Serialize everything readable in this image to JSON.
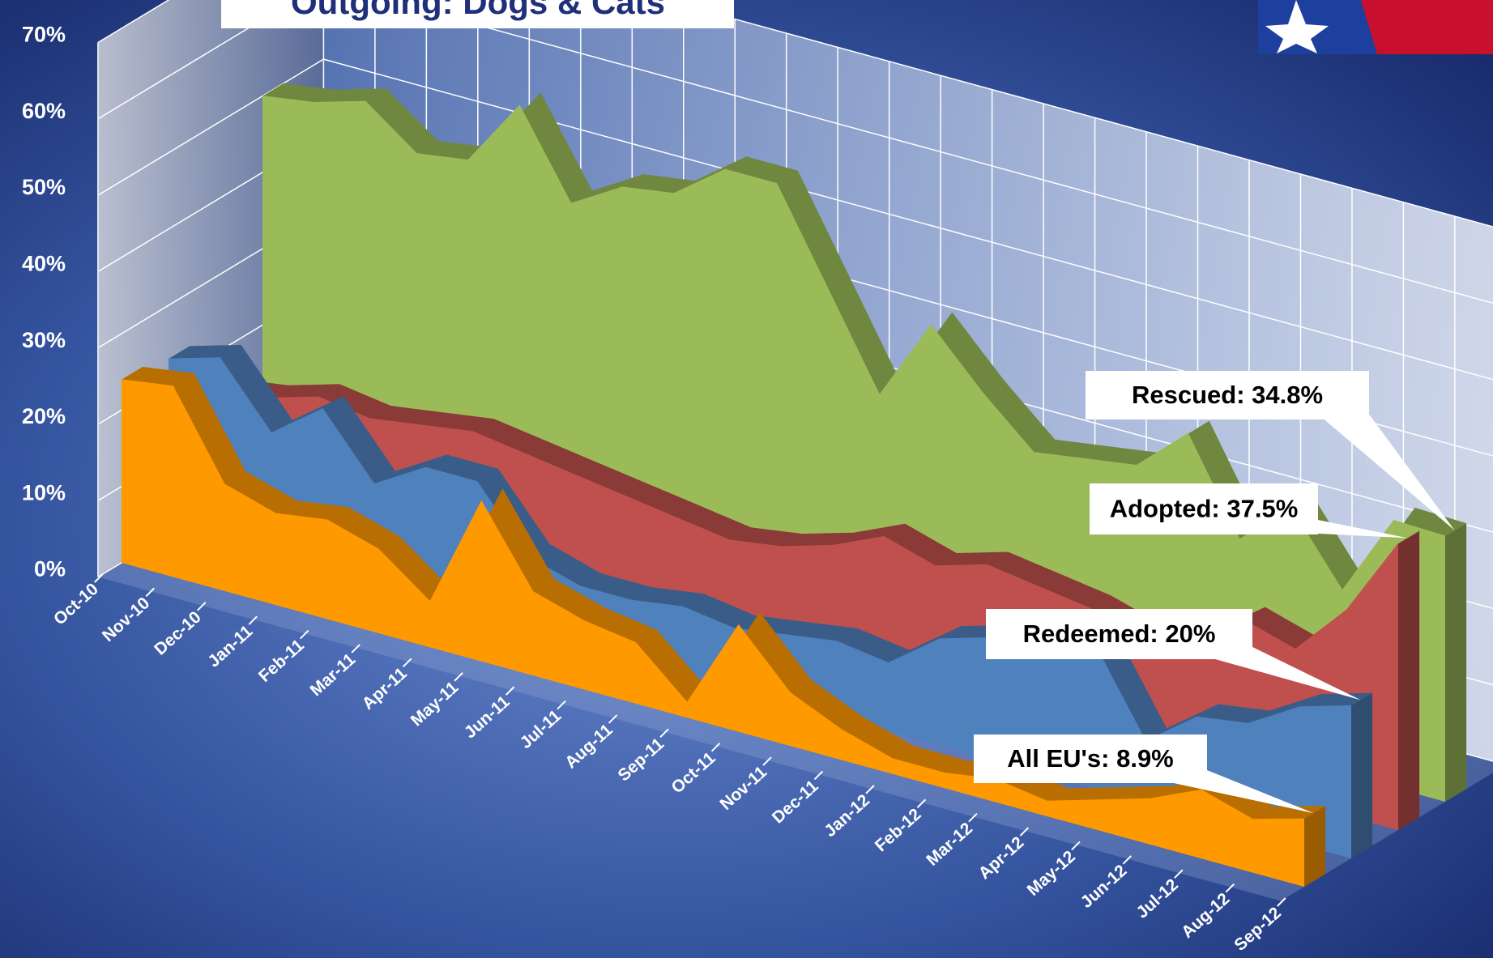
{
  "chart_data": {
    "type": "area3d",
    "title": "Outgoing: Dogs & Cats",
    "categories": [
      "Oct-10",
      "Nov-10",
      "Dec-10",
      "Jan-11",
      "Feb-11",
      "Mar-11",
      "Apr-11",
      "May-11",
      "Jun-11",
      "Jul-11",
      "Aug-11",
      "Sep-11",
      "Oct-11",
      "Nov-11",
      "Dec-11",
      "Jan-12",
      "Feb-12",
      "Mar-12",
      "Apr-12",
      "May-12",
      "Jun-12",
      "Jul-12",
      "Aug-12",
      "Sep-12"
    ],
    "series": [
      {
        "label": "All EU's:  8.9%",
        "color": "#ff9900",
        "values": [
          24,
          25,
          14,
          12,
          13,
          11,
          6,
          21,
          11,
          9,
          8,
          2,
          14,
          7,
          4,
          2,
          2,
          3,
          2,
          4,
          6,
          9,
          7,
          8.9
        ]
      },
      {
        "label": "Redeemed: 20%",
        "color": "#4f81bd",
        "values": [
          23,
          25,
          17,
          22,
          14,
          18,
          18,
          10,
          8,
          8,
          9,
          8,
          9,
          10,
          9,
          14,
          16,
          17,
          19,
          8,
          13,
          14,
          18,
          20
        ]
      },
      {
        "label": "Adopted: 37.5%",
        "color": "#c0504d",
        "values": [
          15,
          16,
          18,
          17,
          18,
          19,
          18,
          17,
          16,
          15,
          14,
          15,
          17,
          20,
          18,
          20,
          19,
          18,
          16,
          17,
          22,
          20,
          27,
          37.5
        ]
      },
      {
        "label": "Rescued: 34.8%",
        "color": "#9bbb59",
        "values": [
          50,
          51,
          53,
          48,
          49,
          58,
          47,
          51,
          52,
          57,
          57,
          45,
          33,
          44,
          37,
          31,
          32,
          33,
          39,
          27,
          33,
          24,
          35,
          34.8
        ]
      }
    ],
    "ylim": [
      0,
      70
    ],
    "yticks": [
      {
        "value": 0,
        "label": "0%"
      },
      {
        "value": 10,
        "label": "10%"
      },
      {
        "value": 20,
        "label": "20%"
      },
      {
        "value": 30,
        "label": "30%"
      },
      {
        "value": 40,
        "label": "40%"
      },
      {
        "value": 50,
        "label": "50%"
      },
      {
        "value": 60,
        "label": "60%"
      },
      {
        "value": 70,
        "label": "70%"
      }
    ],
    "grid": true
  }
}
